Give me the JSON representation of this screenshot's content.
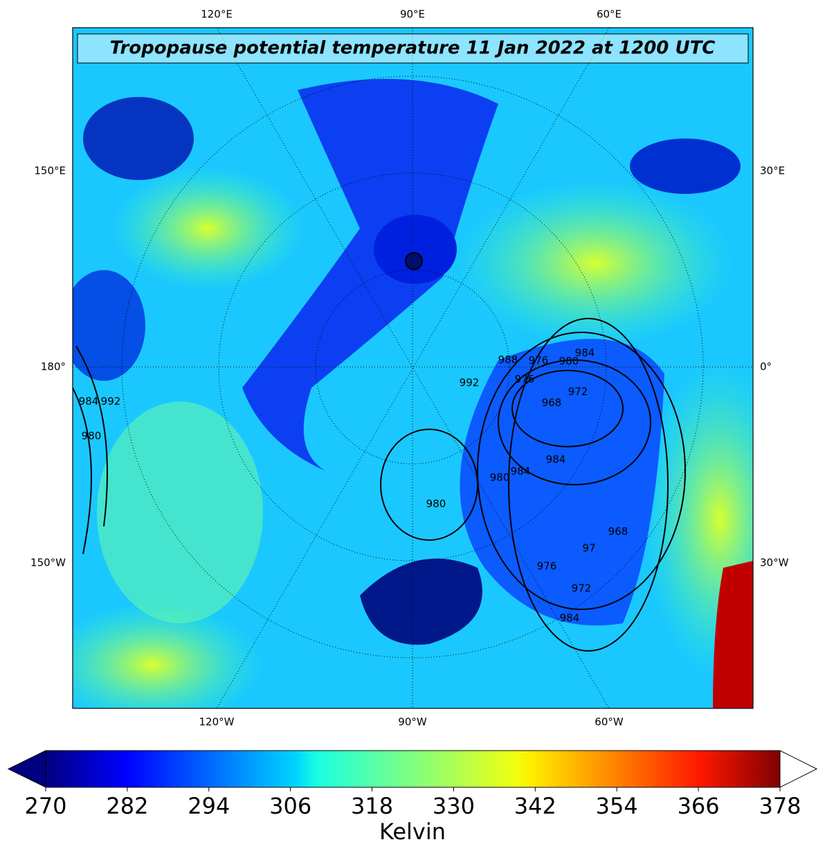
{
  "map": {
    "title": "Tropopause potential temperature 11 Jan 2022 at 1200 UTC",
    "top_labels": [
      "120°E",
      "90°E",
      "60°E"
    ],
    "bottom_labels": [
      "120°W",
      "90°W",
      "60°W"
    ],
    "left_labels": [
      "150°E",
      "180°",
      "150°W"
    ],
    "right_labels": [
      "30°E",
      "0°",
      "30°W"
    ],
    "pressure_labels": [
      "992",
      "984",
      "980",
      "976",
      "972",
      "968",
      "988",
      "976",
      "992",
      "984",
      "980",
      "984",
      "980",
      "984",
      "980",
      "976",
      "972",
      "984",
      "968",
      "97"
    ]
  },
  "colorbar": {
    "label": "Kelvin",
    "lim": [
      270,
      378
    ],
    "ticks": [
      270,
      282,
      294,
      306,
      318,
      330,
      342,
      354,
      366,
      378
    ],
    "colormap": "jet",
    "extend": "both"
  }
}
